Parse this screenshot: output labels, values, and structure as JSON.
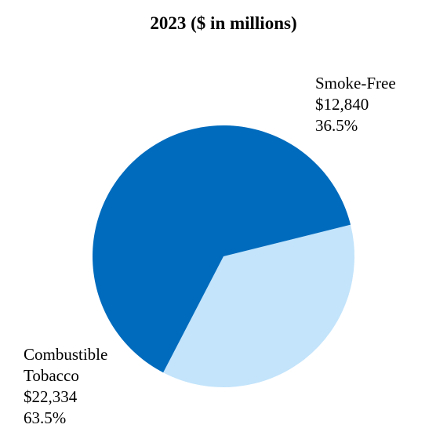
{
  "chart_data": {
    "type": "pie",
    "title": "2023 ($ in millions)",
    "slices": [
      {
        "name": "Smoke-Free",
        "label_lines": [
          "Smoke-Free",
          "$12,840",
          "36.5%"
        ],
        "value": 12840,
        "percent": 36.5,
        "color": "#c3e4fb"
      },
      {
        "name": "Combustible Tobacco",
        "label_lines": [
          "Combustible",
          "Tobacco",
          "$22,334",
          "63.5%"
        ],
        "value": 22334,
        "percent": 63.5,
        "color": "#006bbd"
      }
    ],
    "legend": "none",
    "grid": false
  }
}
